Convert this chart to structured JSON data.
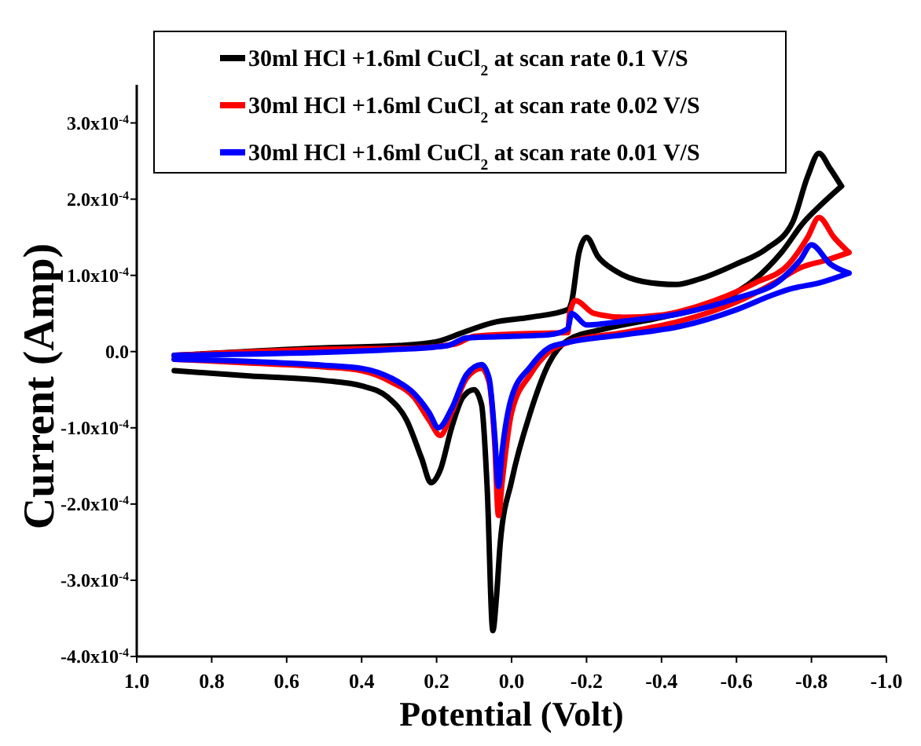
{
  "chart_data": {
    "type": "line",
    "xlabel": "Potential (Volt)",
    "ylabel": "Current (Amp)",
    "xlim": [
      1.0,
      -1.0
    ],
    "ylim": [
      -0.0004,
      0.00035
    ],
    "xticks": [
      {
        "value": 1.0,
        "label": "1.0"
      },
      {
        "value": 0.8,
        "label": "0.8"
      },
      {
        "value": 0.6,
        "label": "0.6"
      },
      {
        "value": 0.4,
        "label": "0.4"
      },
      {
        "value": 0.2,
        "label": "0.2"
      },
      {
        "value": 0,
        "label": "0.0"
      },
      {
        "value": -0.2,
        "label": "-0.2"
      },
      {
        "value": -0.4,
        "label": "-0.4"
      },
      {
        "value": -0.6,
        "label": "-0.6"
      },
      {
        "value": -0.8,
        "label": "-0.8"
      },
      {
        "value": -1.0,
        "label": "-1.0"
      }
    ],
    "yticks": [
      {
        "value": -0.0004,
        "label": "-4.0x10$^{-4}$"
      },
      {
        "value": -0.0003,
        "label": "-3.0x10$^{-4}$"
      },
      {
        "value": -0.0002,
        "label": "-2.0x10$^{-4}$"
      },
      {
        "value": -0.0001,
        "label": "-1.0x10$^{-4}$"
      },
      {
        "value": 0,
        "label": "0.0"
      },
      {
        "value": 0.0001,
        "label": "1.0x10$^{-4}$"
      },
      {
        "value": 0.0002,
        "label": "2.0x10$^{-4}$"
      },
      {
        "value": 0.0003,
        "label": "3.0x10$^{-4}$"
      }
    ],
    "grid": false,
    "legend": "top",
    "marker": "none",
    "line_style": "solid",
    "series": [
      {
        "name": "30ml HCl +1.6ml CuCl$_{2}$ at scan rate  0.1   V/S",
        "color": "#000000",
        "x": [
          0.9,
          0.7,
          0.5,
          0.4,
          0.33,
          0.28,
          0.24,
          0.215,
          0.19,
          0.16,
          0.13,
          0.1,
          0.08,
          0.065,
          0.05,
          0.04,
          0.03,
          0.0,
          -0.05,
          -0.1,
          -0.15,
          -0.25,
          -0.4,
          -0.55,
          -0.65,
          -0.72,
          -0.78,
          -0.82,
          -0.88
        ],
        "values": [
          -2.5e-05,
          -3.2e-05,
          -3.8e-05,
          -4.5e-05,
          -6e-05,
          -9e-05,
          -0.00014,
          -0.000172,
          -0.000155,
          -0.0001,
          -6e-05,
          -5e-05,
          -7e-05,
          -0.00018,
          -0.000366,
          -0.00032,
          -0.00025,
          -0.00017,
          -8e-05,
          -1.5e-05,
          1.5e-05,
          3e-05,
          4.5e-05,
          6.5e-05,
          9.5e-05,
          0.00013,
          0.00017,
          0.00019,
          0.000217
        ]
      },
      {
        "name": "30ml HCl +1.6ml CuCl$_{2}$ at scan rate  0.02 V/S",
        "color": "#ff0000",
        "x": [
          0.9,
          0.7,
          0.5,
          0.4,
          0.32,
          0.26,
          0.22,
          0.19,
          0.16,
          0.12,
          0.08,
          0.06,
          0.045,
          0.035,
          0.025,
          0.0,
          -0.05,
          -0.1,
          -0.15,
          -0.3,
          -0.45,
          -0.6,
          -0.7,
          -0.77,
          -0.84,
          -0.9
        ],
        "values": [
          -1e-05,
          -1.5e-05,
          -2e-05,
          -2.5e-05,
          -4e-05,
          -6e-05,
          -9e-05,
          -0.00011,
          -8e-05,
          -3.5e-05,
          -2.2e-05,
          -4e-05,
          -0.00012,
          -0.000215,
          -0.00017,
          -8e-05,
          -3e-05,
          0,
          1.2e-05,
          2.5e-05,
          4e-05,
          6.5e-05,
          9e-05,
          0.00011,
          0.00012,
          0.00013
        ]
      },
      {
        "name": "30ml HCl +1.6ml CuCl$_{2}$ at scan rate  0.01 V/S",
        "color": "#0000ff",
        "x": [
          0.9,
          0.7,
          0.5,
          0.4,
          0.32,
          0.26,
          0.22,
          0.195,
          0.16,
          0.12,
          0.08,
          0.06,
          0.045,
          0.035,
          0.025,
          0.0,
          -0.05,
          -0.1,
          -0.15,
          -0.3,
          -0.45,
          -0.6,
          -0.7,
          -0.75,
          -0.82,
          -0.9
        ],
        "values": [
          -1e-05,
          -1.3e-05,
          -1.8e-05,
          -2.2e-05,
          -3.5e-05,
          -5.5e-05,
          -8e-05,
          -0.0001,
          -7.5e-05,
          -3e-05,
          -1.7e-05,
          -3.5e-05,
          -0.00011,
          -0.000177,
          -0.00013,
          -6e-05,
          -2e-05,
          5e-06,
          1.2e-05,
          2.2e-05,
          3.3e-05,
          5.5e-05,
          7.5e-05,
          8.3e-05,
          9e-05,
          0.000103
        ]
      },
      {
        "color": "#000000",
        "x": [
          -0.88,
          -0.85,
          -0.82,
          -0.79,
          -0.75,
          -0.68,
          -0.6,
          -0.5,
          -0.44,
          -0.35,
          -0.28,
          -0.23,
          -0.2,
          -0.18,
          -0.16,
          -0.15,
          -0.05,
          0.05,
          0.13,
          0.2,
          0.3,
          0.5,
          0.9
        ],
        "values": [
          0.000217,
          0.00024,
          0.00026,
          0.00023,
          0.00017,
          0.000135,
          0.000115,
          9.5e-05,
          8.8e-05,
          9.2e-05,
          0.000105,
          0.000125,
          0.00015,
          0.00013,
          6.5e-05,
          5.5e-05,
          4.5e-05,
          3.8e-05,
          2.5e-05,
          1.3e-05,
          8e-06,
          5e-06,
          -5e-06
        ]
      },
      {
        "color": "#ff0000",
        "x": [
          -0.9,
          -0.86,
          -0.82,
          -0.79,
          -0.74,
          -0.65,
          -0.5,
          -0.4,
          -0.3,
          -0.22,
          -0.17,
          -0.155,
          -0.15,
          0.0,
          0.1,
          0.15,
          0.25,
          0.5,
          0.9
        ],
        "values": [
          0.00013,
          0.00015,
          0.000176,
          0.00015,
          0.000115,
          9e-05,
          6e-05,
          4.8e-05,
          4.5e-05,
          5e-05,
          6.7e-05,
          5e-05,
          2.5e-05,
          2.3e-05,
          2e-05,
          1e-05,
          5e-06,
          3e-06,
          -5e-06
        ]
      },
      {
        "color": "#0000ff",
        "x": [
          -0.9,
          -0.85,
          -0.8,
          -0.77,
          -0.72,
          -0.6,
          -0.45,
          -0.3,
          -0.2,
          -0.16,
          -0.15,
          -0.1,
          0.0,
          0.12,
          0.17,
          0.3,
          0.9
        ],
        "values": [
          0.000103,
          0.000115,
          0.00014,
          0.00012,
          9.5e-05,
          7e-05,
          5e-05,
          4e-05,
          3.5e-05,
          5e-05,
          3e-05,
          2.2e-05,
          2e-05,
          1.8e-05,
          8e-06,
          3e-06,
          -5e-06
        ]
      }
    ]
  }
}
